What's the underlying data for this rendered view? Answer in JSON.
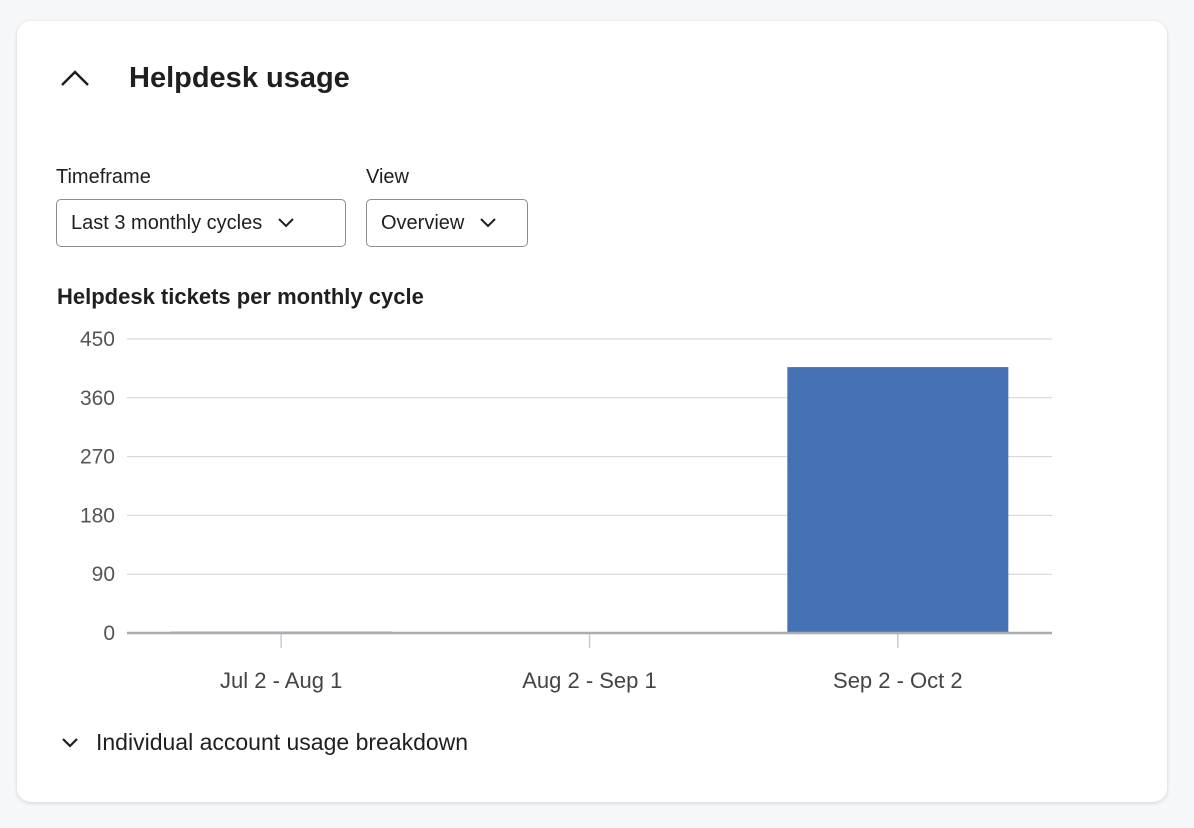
{
  "card": {
    "title": "Helpdesk usage",
    "collapse_icon": "chevron-up-icon"
  },
  "filters": {
    "timeframe": {
      "label": "Timeframe",
      "value": "Last 3 monthly cycles"
    },
    "view": {
      "label": "View",
      "value": "Overview"
    }
  },
  "chart_data": {
    "type": "bar",
    "title": "Helpdesk tickets per monthly cycle",
    "categories": [
      "Jul 2 - Aug 1",
      "Aug 2 - Sep 1",
      "Sep 2 - Oct 2"
    ],
    "values": [
      2,
      1,
      407
    ],
    "yticks": [
      "0",
      "90",
      "180",
      "270",
      "360",
      "450"
    ],
    "ylim": [
      0,
      450
    ],
    "grid": true,
    "color": "#4472b4"
  },
  "breakdown": {
    "label": "Individual account usage breakdown",
    "icon": "chevron-down-icon"
  }
}
